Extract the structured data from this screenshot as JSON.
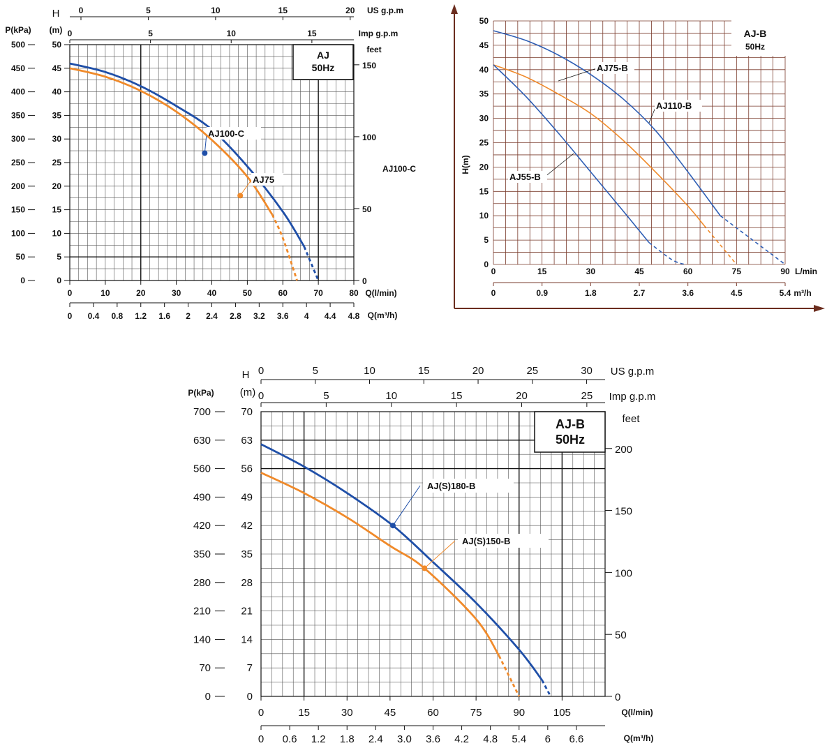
{
  "chart_data": [
    {
      "id": "aj",
      "type": "line",
      "box_label": [
        "AJ",
        "50Hz"
      ],
      "side_label": "AJ100-C",
      "x_axis_lpm": {
        "label": "Q(l/min)",
        "range": [
          0,
          80
        ],
        "ticks": [
          "0",
          "10",
          "20",
          "30",
          "40",
          "50",
          "60",
          "70",
          "80"
        ]
      },
      "x_axis_m3h": {
        "label": "Q(m³/h)",
        "range": [
          0,
          4.8
        ],
        "ticks": [
          "0",
          "0.4",
          "0.8",
          "1.2",
          "1.6",
          "2",
          "2.4",
          "2.8",
          "3.2",
          "3.6",
          "4",
          "4.4",
          "4.8"
        ]
      },
      "y_axis_m": {
        "label_top": "H",
        "label": "(m)",
        "range": [
          0,
          50
        ],
        "ticks": [
          "0",
          "5",
          "10",
          "15",
          "20",
          "25",
          "30",
          "35",
          "40",
          "45",
          "50"
        ]
      },
      "y_axis_kpa": {
        "label": "P(kPa)",
        "range": [
          0,
          500
        ],
        "ticks": [
          "0",
          "50",
          "100",
          "150",
          "200",
          "250",
          "300",
          "350",
          "400",
          "450",
          "500"
        ]
      },
      "y_axis_feet": {
        "label": "feet",
        "range": [
          0,
          164
        ],
        "ticks": [
          "0",
          "50",
          "100",
          "150"
        ]
      },
      "top_axis_us": {
        "label": "US g.p.m",
        "range": [
          0,
          21.1
        ],
        "ticks": [
          "0",
          "5",
          "10",
          "15",
          "20"
        ]
      },
      "top_axis_imp": {
        "label": "Imp g.p.m",
        "range": [
          0,
          17.6
        ],
        "ticks": [
          "0",
          "5",
          "10",
          "15"
        ]
      },
      "series": [
        {
          "name": "AJ100-C",
          "color": "#1f4fa8",
          "marker": [
            38,
            27
          ],
          "points": [
            [
              0,
              46
            ],
            [
              10,
              44.2
            ],
            [
              20,
              41.2
            ],
            [
              30,
              37
            ],
            [
              40,
              32
            ],
            [
              50,
              24.2
            ],
            [
              60,
              14.6
            ],
            [
              66,
              7.2
            ]
          ],
          "dash": [
            [
              66,
              7.2
            ],
            [
              70,
              0
            ]
          ]
        },
        {
          "name": "AJ75",
          "color": "#f08a2a",
          "marker": [
            48,
            18
          ],
          "points": [
            [
              0,
              45
            ],
            [
              10,
              43.2
            ],
            [
              20,
              40.2
            ],
            [
              30,
              35.8
            ],
            [
              40,
              29.8
            ],
            [
              50,
              22
            ],
            [
              57,
              14
            ]
          ],
          "dash": [
            [
              57,
              14
            ],
            [
              60,
              9
            ],
            [
              64,
              0
            ]
          ]
        }
      ]
    },
    {
      "id": "ajb-small",
      "type": "line",
      "box_label": [
        "AJ-B",
        "50Hz"
      ],
      "x_axis_lpm": {
        "label": "L/min",
        "range": [
          0,
          90
        ],
        "ticks": [
          "0",
          "15",
          "30",
          "45",
          "60",
          "75",
          "90"
        ]
      },
      "x_axis_m3h": {
        "label": "m³/h",
        "range": [
          0,
          5.4
        ],
        "ticks": [
          "0",
          "0.9",
          "1.8",
          "2.7",
          "3.6",
          "4.5",
          "5.4"
        ]
      },
      "y_axis_m": {
        "label": "H(m)",
        "range": [
          0,
          50
        ],
        "ticks": [
          "0",
          "5",
          "10",
          "15",
          "20",
          "25",
          "30",
          "35",
          "40",
          "45",
          "50"
        ]
      },
      "series": [
        {
          "name": "AJ75-B",
          "color": "#2f5fb5",
          "points": [
            [
              0,
              48
            ],
            [
              10,
              46
            ],
            [
              20,
              43
            ],
            [
              30,
              39
            ],
            [
              40,
              34
            ],
            [
              50,
              27.5
            ],
            [
              60,
              19
            ],
            [
              70,
              10
            ]
          ],
          "dash": [
            [
              70,
              10
            ],
            [
              80,
              5
            ],
            [
              90,
              0
            ]
          ]
        },
        {
          "name": "AJ110-B",
          "color": "#f08a2a",
          "points": [
            [
              0,
              41
            ],
            [
              10,
              38.5
            ],
            [
              20,
              35
            ],
            [
              30,
              31
            ],
            [
              40,
              25.5
            ],
            [
              50,
              19
            ],
            [
              60,
              12
            ],
            [
              65,
              8
            ]
          ],
          "dash": [
            [
              65,
              8
            ],
            [
              70,
              4
            ],
            [
              75,
              0
            ]
          ]
        },
        {
          "name": "AJ55-B",
          "color": "#2f5fb5",
          "points": [
            [
              0,
              41
            ],
            [
              10,
              34.5
            ],
            [
              20,
              27
            ],
            [
              30,
              19
            ],
            [
              40,
              11
            ],
            [
              48,
              4.5
            ]
          ],
          "dash": [
            [
              48,
              4.5
            ],
            [
              55,
              1
            ],
            [
              59,
              0
            ]
          ]
        }
      ]
    },
    {
      "id": "ajb-large",
      "type": "line",
      "box_label": [
        "AJ-B",
        "50Hz"
      ],
      "x_axis_lpm": {
        "label": "Q(l/min)",
        "range": [
          0,
          120
        ],
        "ticks": [
          "0",
          "15",
          "30",
          "45",
          "60",
          "75",
          "90",
          "105"
        ]
      },
      "x_axis_m3h": {
        "label": "Q(m³/h)",
        "range": [
          0,
          7.2
        ],
        "ticks": [
          "0",
          "0.6",
          "1.2",
          "1.8",
          "2.4",
          "3.0",
          "3.6",
          "4.2",
          "4.8",
          "5.4",
          "6",
          "6.6"
        ]
      },
      "y_axis_m": {
        "label_top": "H",
        "label": "(m)",
        "range": [
          0,
          70
        ],
        "ticks": [
          "0",
          "7",
          "14",
          "21",
          "28",
          "35",
          "42",
          "49",
          "56",
          "63",
          "70"
        ]
      },
      "y_axis_kpa": {
        "label": "P(kPa)",
        "range": [
          0,
          700
        ],
        "ticks": [
          "0",
          "70",
          "140",
          "210",
          "280",
          "350",
          "420",
          "490",
          "560",
          "630",
          "700"
        ]
      },
      "y_axis_feet": {
        "label": "feet",
        "range": [
          0,
          229.7
        ],
        "ticks": [
          "0",
          "50",
          "100",
          "150",
          "200"
        ]
      },
      "top_axis_us": {
        "label": "US g.p.m",
        "range": [
          0,
          31.7
        ],
        "ticks": [
          "0",
          "5",
          "10",
          "15",
          "20",
          "25",
          "30"
        ]
      },
      "top_axis_imp": {
        "label": "Imp g.p.m",
        "range": [
          0,
          26.4
        ],
        "ticks": [
          "0",
          "5",
          "10",
          "15",
          "20",
          "25"
        ]
      },
      "series": [
        {
          "name": "AJ(S)180-B",
          "color": "#1f4fa8",
          "marker": [
            46,
            42
          ],
          "points": [
            [
              0,
              62
            ],
            [
              15,
              56.5
            ],
            [
              30,
              50
            ],
            [
              46,
              42
            ],
            [
              60,
              33
            ],
            [
              75,
              23
            ],
            [
              90,
              11.5
            ],
            [
              98,
              4
            ]
          ],
          "dash": [
            [
              98,
              4
            ],
            [
              101,
              0
            ]
          ]
        },
        {
          "name": "AJ(S)150-B",
          "color": "#f08a2a",
          "marker": [
            57,
            31.5
          ],
          "points": [
            [
              0,
              55
            ],
            [
              15,
              50
            ],
            [
              30,
              44
            ],
            [
              45,
              37
            ],
            [
              57,
              31.5
            ],
            [
              75,
              19
            ],
            [
              83,
              10
            ]
          ],
          "dash": [
            [
              83,
              10
            ],
            [
              90,
              0
            ]
          ]
        }
      ]
    }
  ]
}
